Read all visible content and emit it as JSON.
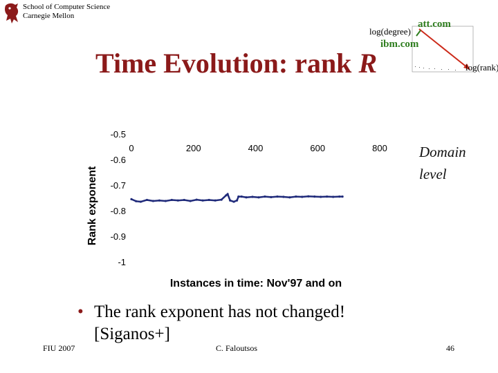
{
  "header": {
    "school_line1": "School of Computer Science",
    "school_line2": "Carnegie Mellon"
  },
  "title": {
    "main": "Time Evolution: rank ",
    "symbol": "R"
  },
  "inset": {
    "ylabel": "log(degree)",
    "xlabel": "log(rank)",
    "labels": [
      "att.com",
      "ibm.com"
    ],
    "accent": "#2e7d1e",
    "arrow_color": "#cc2a1a"
  },
  "chart_data": {
    "type": "scatter",
    "title": "",
    "xlabel": "Instances in time: Nov'97 and on",
    "ylabel": "Rank exponent",
    "xlim": [
      0,
      800
    ],
    "ylim": [
      -1,
      -0.5
    ],
    "xticks": [
      "0",
      "200",
      "400",
      "600",
      "800"
    ],
    "yticks": [
      "-0.5",
      "-0.6",
      "-0.7",
      "-0.8",
      "-0.9",
      "-1"
    ],
    "series": [
      {
        "color": "#1f2a7a",
        "x": [
          0,
          15,
          30,
          50,
          70,
          90,
          110,
          130,
          150,
          170,
          190,
          210,
          230,
          250,
          270,
          290,
          305,
          310,
          318,
          330,
          340,
          345,
          355,
          370,
          390,
          410,
          430,
          450,
          470,
          490,
          510,
          530,
          550,
          570,
          590,
          610,
          630,
          650,
          670,
          680
        ],
        "y": [
          -0.755,
          -0.763,
          -0.765,
          -0.758,
          -0.762,
          -0.76,
          -0.762,
          -0.758,
          -0.76,
          -0.758,
          -0.762,
          -0.757,
          -0.76,
          -0.758,
          -0.76,
          -0.757,
          -0.74,
          -0.735,
          -0.76,
          -0.765,
          -0.76,
          -0.745,
          -0.745,
          -0.748,
          -0.746,
          -0.748,
          -0.745,
          -0.747,
          -0.745,
          -0.746,
          -0.748,
          -0.745,
          -0.746,
          -0.744,
          -0.745,
          -0.746,
          -0.745,
          -0.746,
          -0.745,
          -0.745
        ]
      }
    ]
  },
  "side_note": {
    "line1": "Domain",
    "line2": "level"
  },
  "bullet": {
    "marker": "•",
    "line1": "The rank exponent has not changed!",
    "line2": "[Siganos+]"
  },
  "footer": {
    "left": "FIU 2007",
    "center": "C. Faloutsos",
    "right": "46"
  }
}
